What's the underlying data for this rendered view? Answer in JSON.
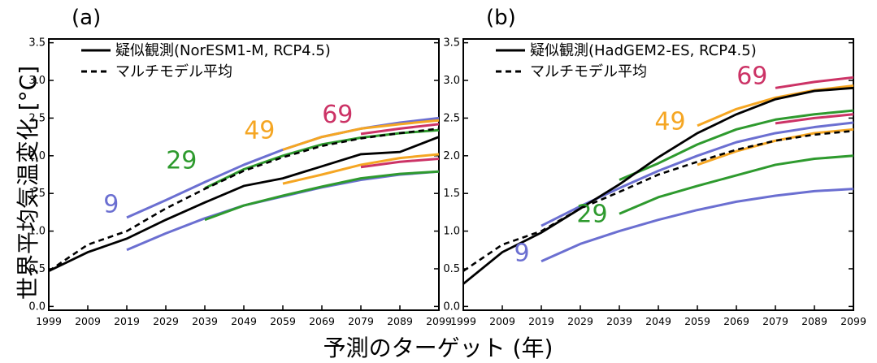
{
  "ylabel": "世界平均気温変化 [°C]",
  "xlabel": "予測のターゲット (年)",
  "colors": {
    "9": "#6b6fd1",
    "29": "#2e9a2e",
    "49": "#f5a623",
    "69": "#cc3366",
    "obs": "#000000",
    "mm": "#000000"
  },
  "chart_data": [
    {
      "type": "line",
      "panel_label": "(a)",
      "legend": {
        "obs": "疑似観測(NorESM1-M, RCP4.5)",
        "mm": "マルチモデル平均"
      },
      "xlim": [
        1999,
        2099
      ],
      "ylim": [
        -0.05,
        3.55
      ],
      "xticks": [
        "1999",
        "2009",
        "2019",
        "2029",
        "2039",
        "2049",
        "2059",
        "2069",
        "2079",
        "2089",
        "2099"
      ],
      "yticks": [
        "0.0",
        "0.5",
        "1.0",
        "1.5",
        "2.0",
        "2.5",
        "3.0",
        "3.5"
      ],
      "observed": {
        "x": [
          1999,
          2009,
          2019,
          2029,
          2039,
          2049,
          2059,
          2069,
          2079,
          2089,
          2099
        ],
        "y": [
          0.47,
          0.72,
          0.9,
          1.15,
          1.38,
          1.6,
          1.7,
          1.86,
          2.02,
          2.05,
          2.25
        ]
      },
      "multimodel_mean": {
        "x": [
          1999,
          2009,
          2019,
          2029,
          2039,
          2049,
          2059,
          2069,
          2079,
          2089,
          2099
        ],
        "y": [
          0.47,
          0.82,
          1.0,
          1.3,
          1.56,
          1.8,
          1.98,
          2.13,
          2.23,
          2.3,
          2.36
        ]
      },
      "start_labels": [
        {
          "text": "9",
          "start": 2019,
          "label_x": 2017,
          "label_y": 1.25,
          "color_key": "9"
        },
        {
          "text": "29",
          "start": 2039,
          "label_x": 2037,
          "label_y": 1.83,
          "color_key": "29"
        },
        {
          "text": "49",
          "start": 2059,
          "label_x": 2057,
          "label_y": 2.23,
          "color_key": "49"
        },
        {
          "text": "69",
          "start": 2079,
          "label_x": 2077,
          "label_y": 2.44,
          "color_key": "69"
        }
      ],
      "series": [
        {
          "group": "9",
          "x": [
            2019,
            2029,
            2039,
            2049,
            2059,
            2069,
            2079,
            2089,
            2099
          ],
          "y": [
            1.18,
            1.41,
            1.65,
            1.88,
            2.08,
            2.25,
            2.36,
            2.44,
            2.5
          ]
        },
        {
          "group": "9",
          "x": [
            2019,
            2029,
            2039,
            2049,
            2059,
            2069,
            2079,
            2089,
            2099
          ],
          "y": [
            0.75,
            0.97,
            1.17,
            1.34,
            1.46,
            1.58,
            1.68,
            1.75,
            1.79
          ]
        },
        {
          "group": "29",
          "x": [
            2039,
            2049,
            2059,
            2069,
            2079,
            2089,
            2099
          ],
          "y": [
            1.57,
            1.82,
            2.0,
            2.15,
            2.24,
            2.3,
            2.34
          ]
        },
        {
          "group": "29",
          "x": [
            2039,
            2049,
            2059,
            2069,
            2079,
            2089,
            2099
          ],
          "y": [
            1.15,
            1.34,
            1.47,
            1.59,
            1.7,
            1.76,
            1.79
          ]
        },
        {
          "group": "49",
          "x": [
            2059,
            2069,
            2079,
            2089,
            2099
          ],
          "y": [
            2.08,
            2.25,
            2.36,
            2.42,
            2.47
          ]
        },
        {
          "group": "49",
          "x": [
            2059,
            2069,
            2079,
            2089,
            2099
          ],
          "y": [
            1.63,
            1.75,
            1.88,
            1.97,
            2.02
          ]
        },
        {
          "group": "69",
          "x": [
            2079,
            2089,
            2099
          ],
          "y": [
            2.29,
            2.36,
            2.42
          ]
        },
        {
          "group": "69",
          "x": [
            2079,
            2089,
            2099
          ],
          "y": [
            1.85,
            1.92,
            1.96
          ]
        }
      ]
    },
    {
      "type": "line",
      "panel_label": "(b)",
      "legend": {
        "obs": "疑似観測(HadGEM2-ES, RCP4.5)",
        "mm": "マルチモデル平均"
      },
      "xlim": [
        1999,
        2099
      ],
      "ylim": [
        -0.05,
        3.55
      ],
      "xticks": [
        "1999",
        "2009",
        "2019",
        "2029",
        "2039",
        "2049",
        "2059",
        "2069",
        "2079",
        "2089",
        "2099"
      ],
      "yticks": [
        "0.0",
        "0.5",
        "1.0",
        "1.5",
        "2.0",
        "2.5",
        "3.0",
        "3.5"
      ],
      "observed": {
        "x": [
          1999,
          2009,
          2019,
          2029,
          2039,
          2049,
          2059,
          2069,
          2079,
          2089,
          2099
        ],
        "y": [
          0.3,
          0.72,
          0.98,
          1.3,
          1.62,
          1.98,
          2.3,
          2.55,
          2.75,
          2.86,
          2.9
        ]
      },
      "multimodel_mean": {
        "x": [
          1999,
          2009,
          2019,
          2029,
          2039,
          2049,
          2059,
          2069,
          2079,
          2089,
          2099
        ],
        "y": [
          0.47,
          0.82,
          1.0,
          1.3,
          1.52,
          1.75,
          1.92,
          2.08,
          2.2,
          2.28,
          2.33
        ]
      },
      "start_labels": [
        {
          "text": "9",
          "start": 2019,
          "label_x": 2016,
          "label_y": 0.6,
          "color_key": "9"
        },
        {
          "text": "29",
          "start": 2039,
          "label_x": 2036,
          "label_y": 1.12,
          "color_key": "29"
        },
        {
          "text": "49",
          "start": 2059,
          "label_x": 2056,
          "label_y": 2.35,
          "color_key": "49"
        },
        {
          "text": "69",
          "start": 2079,
          "label_x": 2077,
          "label_y": 2.95,
          "color_key": "69"
        }
      ],
      "series": [
        {
          "group": "9",
          "x": [
            2019,
            2029,
            2039,
            2049,
            2059,
            2069,
            2079,
            2089,
            2099
          ],
          "y": [
            1.07,
            1.33,
            1.57,
            1.8,
            2.0,
            2.18,
            2.3,
            2.38,
            2.44
          ]
        },
        {
          "group": "9",
          "x": [
            2019,
            2029,
            2039,
            2049,
            2059,
            2069,
            2079,
            2089,
            2099
          ],
          "y": [
            0.6,
            0.83,
            1.0,
            1.15,
            1.28,
            1.39,
            1.47,
            1.53,
            1.56
          ]
        },
        {
          "group": "29",
          "x": [
            2039,
            2049,
            2059,
            2069,
            2079,
            2089,
            2099
          ],
          "y": [
            1.68,
            1.9,
            2.15,
            2.35,
            2.48,
            2.55,
            2.6
          ]
        },
        {
          "group": "29",
          "x": [
            2039,
            2049,
            2059,
            2069,
            2079,
            2089,
            2099
          ],
          "y": [
            1.23,
            1.45,
            1.6,
            1.74,
            1.88,
            1.96,
            2.0
          ]
        },
        {
          "group": "49",
          "x": [
            2059,
            2069,
            2079,
            2089,
            2099
          ],
          "y": [
            2.4,
            2.62,
            2.77,
            2.87,
            2.93
          ]
        },
        {
          "group": "49",
          "x": [
            2059,
            2069,
            2079,
            2089,
            2099
          ],
          "y": [
            1.88,
            2.06,
            2.2,
            2.3,
            2.35
          ]
        },
        {
          "group": "69",
          "x": [
            2079,
            2089,
            2099
          ],
          "y": [
            2.9,
            2.98,
            3.04
          ]
        },
        {
          "group": "69",
          "x": [
            2079,
            2089,
            2099
          ],
          "y": [
            2.43,
            2.5,
            2.55
          ]
        }
      ]
    }
  ]
}
